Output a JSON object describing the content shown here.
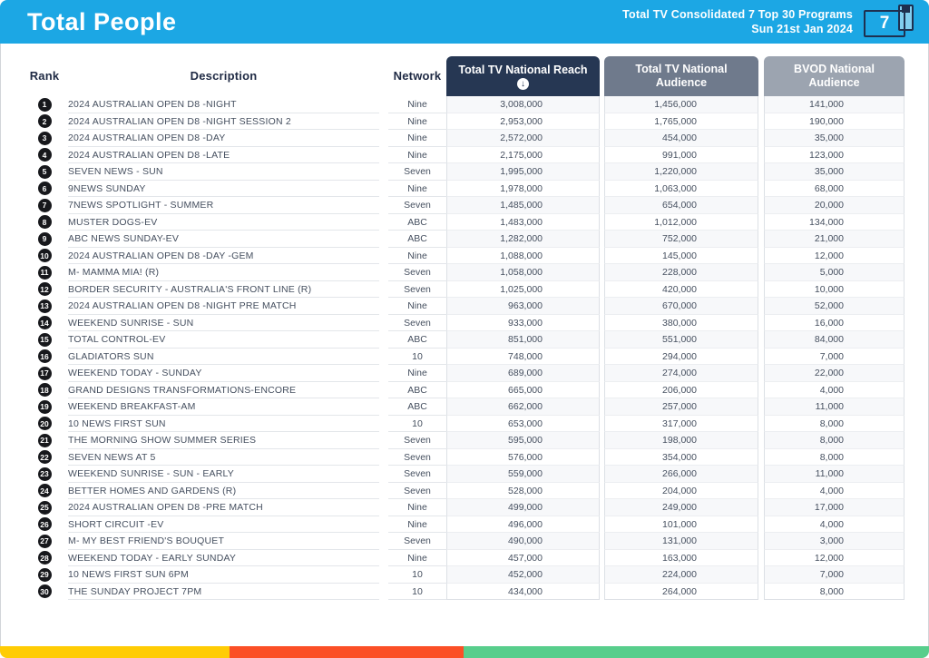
{
  "page": {
    "title": "Total People",
    "report_line1": "Total TV Consolidated 7 Top 30 Programs",
    "report_line2": "Sun 21st Jan 2024"
  },
  "logo": {
    "number": "7"
  },
  "icons": {
    "sort_descending": "↓"
  },
  "table": {
    "headers": {
      "rank": "Rank",
      "description": "Description",
      "network": "Network",
      "reach": "Total TV National Reach",
      "audience": "Total TV National Audience",
      "bvod": "BVOD National Audience"
    }
  },
  "rows": [
    {
      "rank": "1",
      "description": "2024 AUSTRALIAN OPEN D8 -NIGHT",
      "network": "Nine",
      "reach": "3,008,000",
      "audience": "1,456,000",
      "bvod": "141,000"
    },
    {
      "rank": "2",
      "description": "2024 AUSTRALIAN OPEN D8 -NIGHT SESSION 2",
      "network": "Nine",
      "reach": "2,953,000",
      "audience": "1,765,000",
      "bvod": "190,000"
    },
    {
      "rank": "3",
      "description": "2024 AUSTRALIAN OPEN D8 -DAY",
      "network": "Nine",
      "reach": "2,572,000",
      "audience": "454,000",
      "bvod": "35,000"
    },
    {
      "rank": "4",
      "description": "2024 AUSTRALIAN OPEN D8 -LATE",
      "network": "Nine",
      "reach": "2,175,000",
      "audience": "991,000",
      "bvod": "123,000"
    },
    {
      "rank": "5",
      "description": "SEVEN NEWS - SUN",
      "network": "Seven",
      "reach": "1,995,000",
      "audience": "1,220,000",
      "bvod": "35,000"
    },
    {
      "rank": "6",
      "description": "9NEWS SUNDAY",
      "network": "Nine",
      "reach": "1,978,000",
      "audience": "1,063,000",
      "bvod": "68,000"
    },
    {
      "rank": "7",
      "description": "7NEWS SPOTLIGHT - SUMMER",
      "network": "Seven",
      "reach": "1,485,000",
      "audience": "654,000",
      "bvod": "20,000"
    },
    {
      "rank": "8",
      "description": "MUSTER DOGS-EV",
      "network": "ABC",
      "reach": "1,483,000",
      "audience": "1,012,000",
      "bvod": "134,000"
    },
    {
      "rank": "9",
      "description": "ABC NEWS SUNDAY-EV",
      "network": "ABC",
      "reach": "1,282,000",
      "audience": "752,000",
      "bvod": "21,000"
    },
    {
      "rank": "10",
      "description": "2024 AUSTRALIAN OPEN D8 -DAY -GEM",
      "network": "Nine",
      "reach": "1,088,000",
      "audience": "145,000",
      "bvod": "12,000"
    },
    {
      "rank": "11",
      "description": "M- MAMMA MIA! (R)",
      "network": "Seven",
      "reach": "1,058,000",
      "audience": "228,000",
      "bvod": "5,000"
    },
    {
      "rank": "12",
      "description": "BORDER SECURITY - AUSTRALIA'S FRONT LINE (R)",
      "network": "Seven",
      "reach": "1,025,000",
      "audience": "420,000",
      "bvod": "10,000"
    },
    {
      "rank": "13",
      "description": "2024 AUSTRALIAN OPEN D8 -NIGHT PRE MATCH",
      "network": "Nine",
      "reach": "963,000",
      "audience": "670,000",
      "bvod": "52,000"
    },
    {
      "rank": "14",
      "description": "WEEKEND SUNRISE - SUN",
      "network": "Seven",
      "reach": "933,000",
      "audience": "380,000",
      "bvod": "16,000"
    },
    {
      "rank": "15",
      "description": "TOTAL CONTROL-EV",
      "network": "ABC",
      "reach": "851,000",
      "audience": "551,000",
      "bvod": "84,000"
    },
    {
      "rank": "16",
      "description": "GLADIATORS SUN",
      "network": "10",
      "reach": "748,000",
      "audience": "294,000",
      "bvod": "7,000"
    },
    {
      "rank": "17",
      "description": "WEEKEND TODAY - SUNDAY",
      "network": "Nine",
      "reach": "689,000",
      "audience": "274,000",
      "bvod": "22,000"
    },
    {
      "rank": "18",
      "description": "GRAND DESIGNS TRANSFORMATIONS-ENCORE",
      "network": "ABC",
      "reach": "665,000",
      "audience": "206,000",
      "bvod": "4,000"
    },
    {
      "rank": "19",
      "description": "WEEKEND BREAKFAST-AM",
      "network": "ABC",
      "reach": "662,000",
      "audience": "257,000",
      "bvod": "11,000"
    },
    {
      "rank": "20",
      "description": "10 NEWS FIRST SUN",
      "network": "10",
      "reach": "653,000",
      "audience": "317,000",
      "bvod": "8,000"
    },
    {
      "rank": "21",
      "description": "THE MORNING SHOW SUMMER SERIES",
      "network": "Seven",
      "reach": "595,000",
      "audience": "198,000",
      "bvod": "8,000"
    },
    {
      "rank": "22",
      "description": "SEVEN NEWS AT 5",
      "network": "Seven",
      "reach": "576,000",
      "audience": "354,000",
      "bvod": "8,000"
    },
    {
      "rank": "23",
      "description": "WEEKEND SUNRISE - SUN - EARLY",
      "network": "Seven",
      "reach": "559,000",
      "audience": "266,000",
      "bvod": "11,000"
    },
    {
      "rank": "24",
      "description": "BETTER HOMES AND GARDENS (R)",
      "network": "Seven",
      "reach": "528,000",
      "audience": "204,000",
      "bvod": "4,000"
    },
    {
      "rank": "25",
      "description": "2024 AUSTRALIAN OPEN D8 -PRE MATCH",
      "network": "Nine",
      "reach": "499,000",
      "audience": "249,000",
      "bvod": "17,000"
    },
    {
      "rank": "26",
      "description": "SHORT CIRCUIT -EV",
      "network": "Nine",
      "reach": "496,000",
      "audience": "101,000",
      "bvod": "4,000"
    },
    {
      "rank": "27",
      "description": "M- MY BEST FRIEND'S BOUQUET",
      "network": "Seven",
      "reach": "490,000",
      "audience": "131,000",
      "bvod": "3,000"
    },
    {
      "rank": "28",
      "description": "WEEKEND TODAY - EARLY SUNDAY",
      "network": "Nine",
      "reach": "457,000",
      "audience": "163,000",
      "bvod": "12,000"
    },
    {
      "rank": "29",
      "description": "10 NEWS FIRST SUN 6PM",
      "network": "10",
      "reach": "452,000",
      "audience": "224,000",
      "bvod": "7,000"
    },
    {
      "rank": "30",
      "description": "THE SUNDAY PROJECT 7PM",
      "network": "10",
      "reach": "434,000",
      "audience": "264,000",
      "bvod": "8,000"
    }
  ],
  "colors": {
    "header_bar": "#1CA7E4",
    "reach_header": "#263753",
    "audience_header": "#6F7A8C",
    "bvod_header": "#9CA4B0",
    "rank_badge": "#17181C",
    "footer_yellow": "#FFCC05",
    "footer_red": "#FB4F26",
    "footer_green": "#58CE8C"
  }
}
